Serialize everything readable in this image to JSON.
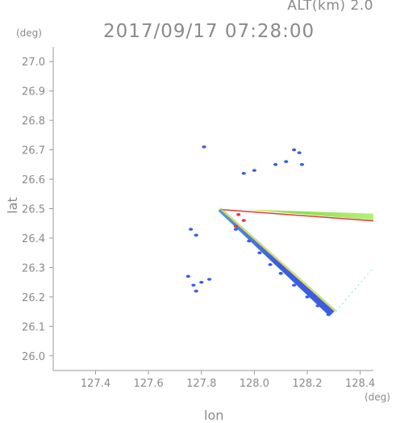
{
  "header": {
    "alt_label": "ALT(km) 2.0",
    "datetime": "2017/09/17 07:28:00"
  },
  "colors": {
    "axis": "#9a9a9a",
    "text": "#8a8a8a",
    "weak_echo": "#3a5ee0",
    "strong_echo": "#e03a3a",
    "mid_echo": "#7de04a"
  },
  "chart_data": {
    "type": "scatter",
    "xlabel": "lon",
    "ylabel": "lat",
    "x_unit": "(deg)",
    "y_unit": "(deg)",
    "xlim": [
      127.24,
      128.45
    ],
    "ylim": [
      25.95,
      27.05
    ],
    "x_ticks": [
      "127.4",
      "127.6",
      "127.8",
      "128.0",
      "128.2",
      "128.4"
    ],
    "y_ticks": [
      "26.0",
      "26.1",
      "26.2",
      "26.3",
      "26.4",
      "26.5",
      "26.6",
      "26.7",
      "26.8",
      "26.9",
      "27.0"
    ],
    "grid": false,
    "series": [
      {
        "color": "#3a5ee0",
        "points": [
          [
            127.81,
            26.71
          ],
          [
            128.15,
            26.7
          ],
          [
            128.17,
            26.69
          ],
          [
            128.08,
            26.65
          ],
          [
            128.12,
            26.66
          ],
          [
            128.18,
            26.65
          ],
          [
            128.0,
            26.63
          ],
          [
            127.96,
            26.62
          ],
          [
            127.76,
            26.43
          ],
          [
            127.78,
            26.41
          ],
          [
            127.75,
            26.27
          ],
          [
            127.77,
            26.24
          ],
          [
            127.8,
            26.25
          ],
          [
            127.83,
            26.26
          ],
          [
            127.78,
            26.22
          ],
          [
            127.93,
            26.43
          ],
          [
            127.98,
            26.39
          ],
          [
            128.02,
            26.35
          ],
          [
            128.06,
            26.31
          ],
          [
            128.1,
            26.28
          ],
          [
            128.15,
            26.24
          ],
          [
            128.2,
            26.2
          ],
          [
            128.24,
            26.17
          ],
          [
            128.28,
            26.14
          ]
        ]
      },
      {
        "color": "#e03a3a",
        "points": [
          [
            127.93,
            26.44
          ],
          [
            127.94,
            26.48
          ],
          [
            127.96,
            26.46
          ]
        ]
      }
    ],
    "wedge": {
      "apex": [
        127.87,
        26.5
      ],
      "edge_north_end": [
        128.45,
        26.475
      ],
      "edge_south_end": [
        128.29,
        26.14
      ]
    }
  }
}
